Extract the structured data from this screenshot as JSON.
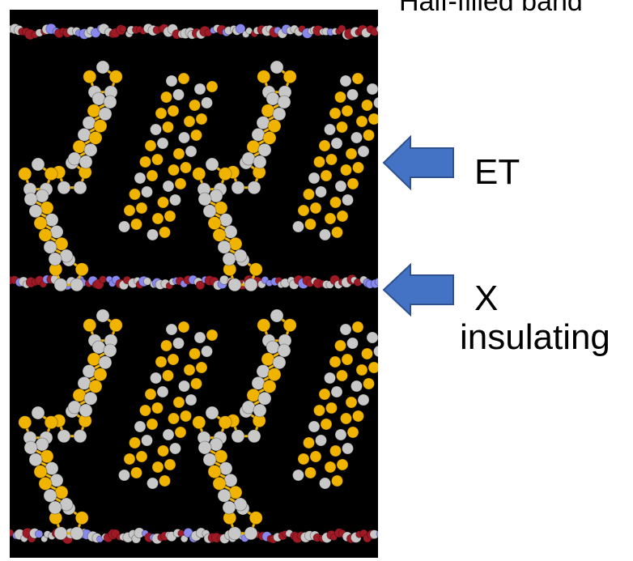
{
  "title": "Half-filled band",
  "labels": {
    "et": "ET",
    "x": "X",
    "insulating": "insulating"
  },
  "colors": {
    "background": "#000000",
    "sulfur": "#f0b400",
    "carbon": "#c8c8c8",
    "anion_red": "#a01a25",
    "anion_blue": "#8888ee",
    "arrow_fill": "#4472c4",
    "arrow_stroke": "#2f528f"
  },
  "legend_arrows": [
    {
      "target": "ET",
      "icon": "left-arrow-icon"
    },
    {
      "target": "X",
      "icon": "left-arrow-icon"
    }
  ]
}
